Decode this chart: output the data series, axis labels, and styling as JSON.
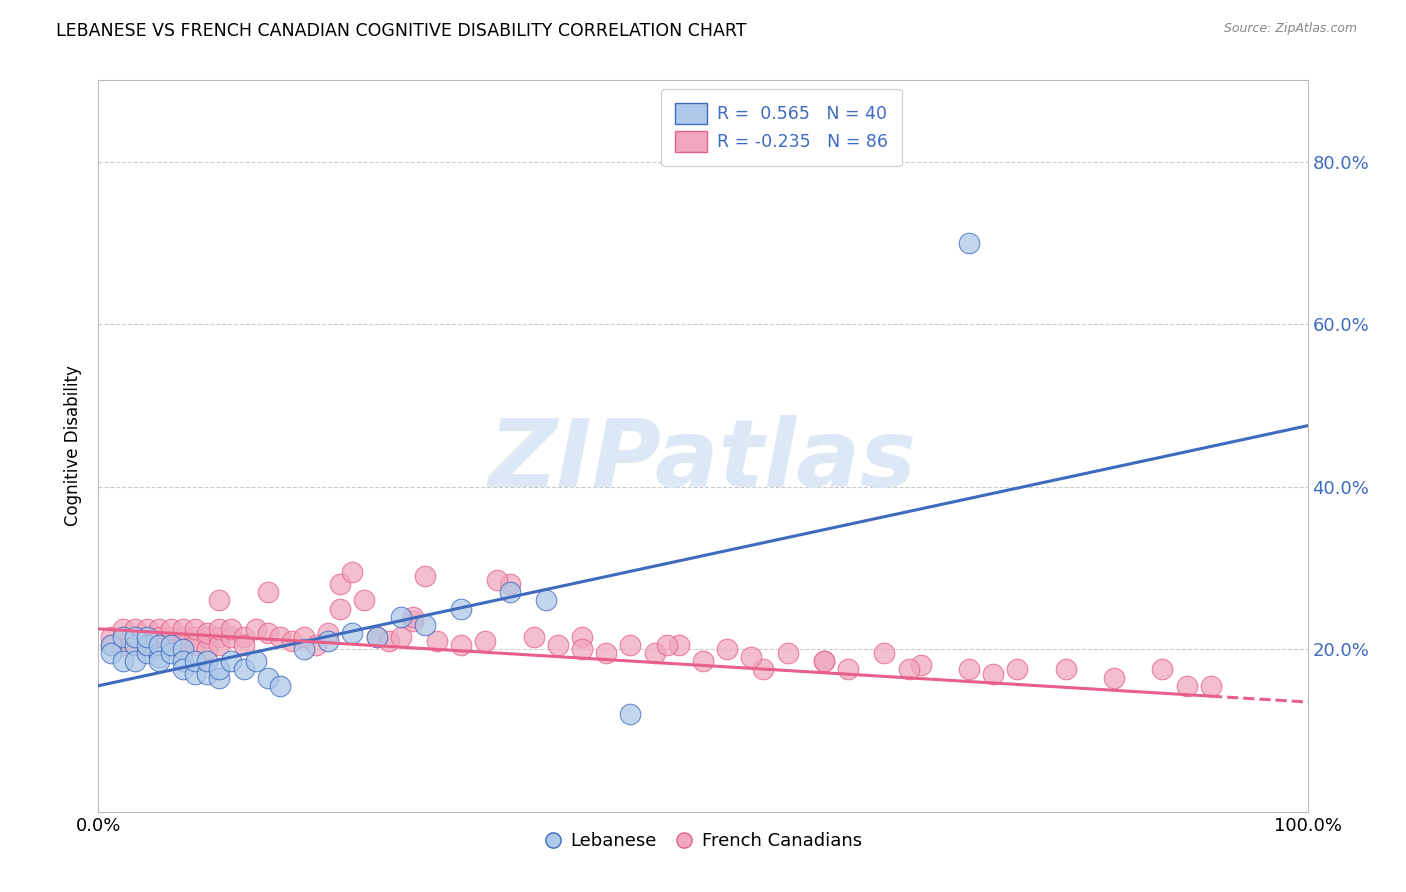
{
  "title": "LEBANESE VS FRENCH CANADIAN COGNITIVE DISABILITY CORRELATION CHART",
  "source": "Source: ZipAtlas.com",
  "ylabel": "Cognitive Disability",
  "legend_label1": "Lebanese",
  "legend_label2": "French Canadians",
  "r1": 0.565,
  "n1": 40,
  "r2": -0.235,
  "n2": 86,
  "color_lebanese": "#adc8e8",
  "color_french": "#f0a8be",
  "color_line1": "#3f6bbf",
  "color_line2": "#e8608a",
  "watermark_text": "ZIPatlas",
  "watermark_color": "#dce8f5",
  "xlim": [
    0.0,
    1.0
  ],
  "ylim": [
    0.0,
    0.9
  ],
  "ytick_vals": [
    0.2,
    0.4,
    0.6,
    0.8
  ],
  "ytick_labels": [
    "20.0%",
    "40.0%",
    "60.0%",
    "80.0%"
  ],
  "background_color": "#ffffff",
  "grid_color": "#cccccc",
  "leb_line_x0": 0.0,
  "leb_line_y0": 0.155,
  "leb_line_x1": 1.0,
  "leb_line_y1": 0.475,
  "fr_line_x0": 0.0,
  "fr_line_y0": 0.225,
  "fr_line_x1": 1.0,
  "fr_line_y1": 0.135,
  "lebanese_x": [
    0.01,
    0.01,
    0.02,
    0.02,
    0.03,
    0.03,
    0.03,
    0.04,
    0.04,
    0.04,
    0.05,
    0.05,
    0.05,
    0.06,
    0.06,
    0.07,
    0.07,
    0.07,
    0.08,
    0.08,
    0.09,
    0.09,
    0.1,
    0.1,
    0.11,
    0.12,
    0.13,
    0.14,
    0.15,
    0.17,
    0.19,
    0.21,
    0.23,
    0.25,
    0.27,
    0.3,
    0.34,
    0.37,
    0.44,
    0.72
  ],
  "lebanese_y": [
    0.205,
    0.195,
    0.215,
    0.185,
    0.205,
    0.215,
    0.185,
    0.195,
    0.205,
    0.215,
    0.19,
    0.205,
    0.185,
    0.195,
    0.205,
    0.2,
    0.185,
    0.175,
    0.17,
    0.185,
    0.17,
    0.185,
    0.165,
    0.175,
    0.185,
    0.175,
    0.185,
    0.165,
    0.155,
    0.2,
    0.21,
    0.22,
    0.215,
    0.24,
    0.23,
    0.25,
    0.27,
    0.26,
    0.12,
    0.7
  ],
  "french_x": [
    0.01,
    0.01,
    0.02,
    0.02,
    0.02,
    0.03,
    0.03,
    0.03,
    0.04,
    0.04,
    0.04,
    0.05,
    0.05,
    0.05,
    0.05,
    0.06,
    0.06,
    0.06,
    0.07,
    0.07,
    0.07,
    0.08,
    0.08,
    0.08,
    0.09,
    0.09,
    0.09,
    0.1,
    0.1,
    0.1,
    0.11,
    0.11,
    0.12,
    0.12,
    0.13,
    0.14,
    0.15,
    0.16,
    0.17,
    0.18,
    0.19,
    0.2,
    0.21,
    0.22,
    0.23,
    0.24,
    0.25,
    0.26,
    0.27,
    0.28,
    0.3,
    0.32,
    0.34,
    0.36,
    0.38,
    0.4,
    0.42,
    0.44,
    0.46,
    0.48,
    0.5,
    0.52,
    0.55,
    0.57,
    0.6,
    0.62,
    0.65,
    0.68,
    0.72,
    0.76,
    0.8,
    0.84,
    0.88,
    0.92,
    0.1,
    0.14,
    0.2,
    0.26,
    0.33,
    0.4,
    0.47,
    0.54,
    0.6,
    0.67,
    0.74,
    0.9
  ],
  "french_y": [
    0.215,
    0.205,
    0.215,
    0.205,
    0.225,
    0.215,
    0.205,
    0.225,
    0.215,
    0.205,
    0.225,
    0.215,
    0.225,
    0.205,
    0.215,
    0.215,
    0.205,
    0.225,
    0.215,
    0.205,
    0.225,
    0.215,
    0.205,
    0.225,
    0.215,
    0.2,
    0.22,
    0.215,
    0.205,
    0.225,
    0.215,
    0.225,
    0.215,
    0.205,
    0.225,
    0.22,
    0.215,
    0.21,
    0.215,
    0.205,
    0.22,
    0.28,
    0.295,
    0.26,
    0.215,
    0.21,
    0.215,
    0.235,
    0.29,
    0.21,
    0.205,
    0.21,
    0.28,
    0.215,
    0.205,
    0.215,
    0.195,
    0.205,
    0.195,
    0.205,
    0.185,
    0.2,
    0.175,
    0.195,
    0.185,
    0.175,
    0.195,
    0.18,
    0.175,
    0.175,
    0.175,
    0.165,
    0.175,
    0.155,
    0.26,
    0.27,
    0.25,
    0.24,
    0.285,
    0.2,
    0.205,
    0.19,
    0.185,
    0.175,
    0.17,
    0.155
  ]
}
